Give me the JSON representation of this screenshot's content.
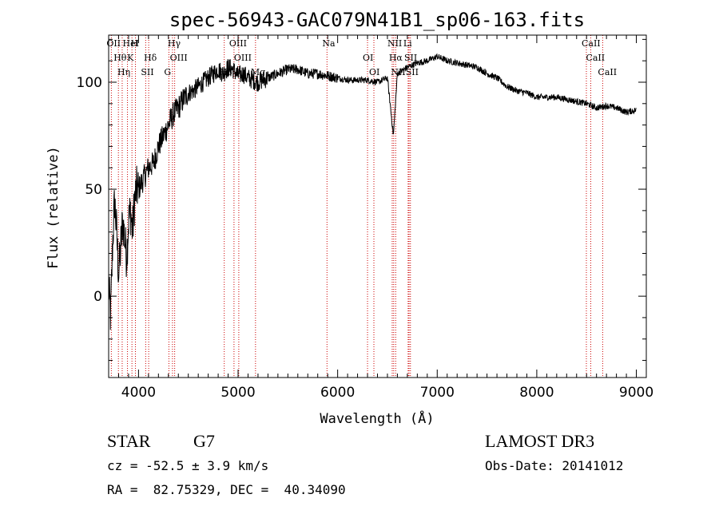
{
  "chart_data": {
    "type": "line",
    "title": "spec-56943-GAC079N41B1_sp06-163.fits",
    "xlabel": "Wavelength (Å)",
    "ylabel": "Flux (relative)",
    "xlim": [
      3700,
      9100
    ],
    "ylim": [
      -38,
      122
    ],
    "xticks": [
      4000,
      5000,
      6000,
      7000,
      8000,
      9000
    ],
    "yticks": [
      0,
      50,
      100
    ],
    "spectrum": {
      "x": [
        3700,
        3720,
        3740,
        3760,
        3780,
        3800,
        3820,
        3840,
        3860,
        3880,
        3900,
        3920,
        3940,
        3960,
        3980,
        4000,
        4050,
        4100,
        4150,
        4200,
        4250,
        4300,
        4350,
        4400,
        4450,
        4500,
        4550,
        4600,
        4650,
        4700,
        4750,
        4800,
        4850,
        4900,
        4950,
        5000,
        5050,
        5100,
        5150,
        5200,
        5300,
        5400,
        5500,
        5600,
        5700,
        5800,
        5900,
        6000,
        6100,
        6200,
        6300,
        6400,
        6500,
        6560,
        6600,
        6700,
        6800,
        6900,
        7000,
        7100,
        7200,
        7300,
        7400,
        7500,
        7600,
        7700,
        7800,
        7900,
        8000,
        8100,
        8200,
        8300,
        8400,
        8500,
        8600,
        8700,
        8800,
        8900,
        9000
      ],
      "y": [
        5,
        -10,
        25,
        45,
        30,
        10,
        22,
        35,
        28,
        18,
        35,
        40,
        30,
        45,
        50,
        50,
        55,
        60,
        62,
        70,
        75,
        80,
        85,
        88,
        92,
        95,
        96,
        98,
        100,
        102,
        104,
        106,
        104,
        107,
        106,
        103,
        104,
        102,
        101,
        100,
        102,
        104,
        106,
        106,
        104,
        104,
        103,
        102,
        101,
        101,
        101,
        100,
        102,
        75,
        104,
        107,
        109,
        110,
        112,
        110,
        109,
        108,
        107,
        104,
        102,
        98,
        96,
        95,
        93,
        93,
        93,
        92,
        91,
        90,
        88,
        89,
        88,
        86,
        87
      ]
    },
    "emission_lines": [
      {
        "label": "OII",
        "wavelength": 3727
      },
      {
        "label": "Hθ",
        "wavelength": 3798
      },
      {
        "label": "Hη",
        "wavelength": 3836
      },
      {
        "label": "HeI",
        "wavelength": 3889
      },
      {
        "label": "K",
        "wavelength": 3934
      },
      {
        "label": "SII",
        "wavelength": 4072
      },
      {
        "label": "H",
        "wavelength": 3969
      },
      {
        "label": "Hδ",
        "wavelength": 4102
      },
      {
        "label": "G",
        "wavelength": 4305
      },
      {
        "label": "Hγ",
        "wavelength": 4341
      },
      {
        "label": "OIII",
        "wavelength": 4363
      },
      {
        "label": "Hβ",
        "wavelength": 4861
      },
      {
        "label": "OIII",
        "wavelength": 4959
      },
      {
        "label": "OIII",
        "wavelength": 5007
      },
      {
        "label": "Mg",
        "wavelength": 5175
      },
      {
        "label": "Na",
        "wavelength": 5893
      },
      {
        "label": "OI",
        "wavelength": 6300
      },
      {
        "label": "OI",
        "wavelength": 6364
      },
      {
        "label": "NII",
        "wavelength": 6548
      },
      {
        "label": "Hα",
        "wavelength": 6563
      },
      {
        "label": "NII",
        "wavelength": 6583
      },
      {
        "label": "Li",
        "wavelength": 6708
      },
      {
        "label": "SII",
        "wavelength": 6717
      },
      {
        "label": "SII",
        "wavelength": 6731
      },
      {
        "label": "CaII",
        "wavelength": 8498
      },
      {
        "label": "CaII",
        "wavelength": 8542
      },
      {
        "label": "CaII",
        "wavelength": 8662
      }
    ]
  },
  "info": {
    "class_label": "STAR",
    "subclass": "G7",
    "survey": "LAMOST DR3",
    "cz": "cz = -52.5 ± 3.9 km/s",
    "obs_date": "Obs-Date: 20141012",
    "coords": "RA =  82.75329, DEC =  40.34090"
  },
  "colors": {
    "line_marker": "#cc0000",
    "axes": "#000000",
    "spectrum": "#000000"
  }
}
